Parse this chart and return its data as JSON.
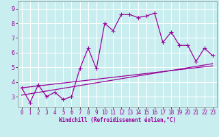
{
  "xlabel": "Windchill (Refroidissement éolien,°C)",
  "bg_color": "#c8eef0",
  "line_color": "#990099",
  "grid_color": "#ffffff",
  "xlim": [
    -0.5,
    23.5
  ],
  "ylim": [
    2.3,
    9.5
  ],
  "xticks": [
    0,
    1,
    2,
    3,
    4,
    5,
    6,
    7,
    8,
    9,
    10,
    11,
    12,
    13,
    14,
    15,
    16,
    17,
    18,
    19,
    20,
    21,
    22,
    23
  ],
  "yticks": [
    3,
    4,
    5,
    6,
    7,
    8,
    9
  ],
  "data_x": [
    0,
    1,
    2,
    3,
    4,
    5,
    6,
    7,
    8,
    9,
    10,
    11,
    12,
    13,
    14,
    15,
    16,
    17,
    18,
    19,
    20,
    21,
    22,
    23
  ],
  "data_y": [
    3.6,
    2.6,
    3.8,
    3.0,
    3.3,
    2.8,
    3.0,
    4.9,
    6.3,
    4.9,
    8.0,
    7.5,
    8.6,
    8.6,
    8.4,
    8.5,
    8.7,
    6.7,
    7.4,
    6.5,
    6.5,
    5.4,
    6.3,
    5.8
  ],
  "trend1_x": [
    0,
    23
  ],
  "trend1_y": [
    3.1,
    5.25
  ],
  "trend2_x": [
    0,
    23
  ],
  "trend2_y": [
    3.6,
    5.1
  ],
  "marker": "+",
  "markersize": 4,
  "linewidth": 0.9,
  "tick_fontsize": 5.5,
  "xlabel_fontsize": 5.5
}
